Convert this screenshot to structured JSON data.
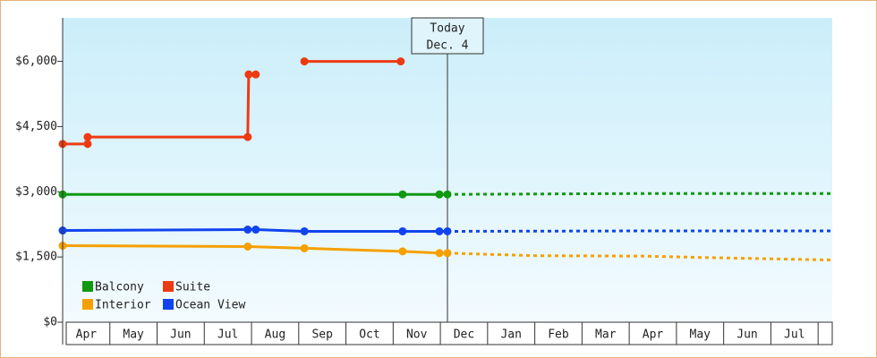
{
  "chart_data": {
    "type": "line",
    "xlim": [
      0,
      16.3
    ],
    "xticks": [
      {
        "value": 0.5,
        "label": "Apr"
      },
      {
        "value": 1.5,
        "label": "May"
      },
      {
        "value": 2.5,
        "label": "Jun"
      },
      {
        "value": 3.5,
        "label": "Jul"
      },
      {
        "value": 4.5,
        "label": "Aug"
      },
      {
        "value": 5.5,
        "label": "Sep"
      },
      {
        "value": 6.5,
        "label": "Oct"
      },
      {
        "value": 7.5,
        "label": "Nov"
      },
      {
        "value": 8.5,
        "label": "Dec"
      },
      {
        "value": 9.5,
        "label": "Jan"
      },
      {
        "value": 10.5,
        "label": "Feb"
      },
      {
        "value": 11.5,
        "label": "Mar"
      },
      {
        "value": 12.5,
        "label": "Apr"
      },
      {
        "value": 13.5,
        "label": "May"
      },
      {
        "value": 14.5,
        "label": "Jun"
      },
      {
        "value": 15.5,
        "label": "Jul"
      }
    ],
    "ylim": [
      0,
      7000
    ],
    "yticks": [
      {
        "value": 0,
        "label": "$0"
      },
      {
        "value": 1500,
        "label": "$1,500"
      },
      {
        "value": 3000,
        "label": "$3,000"
      },
      {
        "value": 4500,
        "label": "$4,500"
      },
      {
        "value": 6000,
        "label": "$6,000"
      }
    ],
    "today": {
      "x": 8.15,
      "title": "Today",
      "date": "Dec. 4"
    },
    "legend": "lower left",
    "series": [
      {
        "name": "Balcony",
        "color": "#119911",
        "x": [
          0,
          7.2,
          7.98,
          8.15
        ],
        "values": [
          2940,
          2940,
          2940,
          2940
        ],
        "forecast": {
          "x": [
            8.15,
            12.3,
            16.3
          ],
          "values": [
            2940,
            2960,
            2960
          ]
        }
      },
      {
        "name": "Suite",
        "color": "#ee3a12",
        "x": [
          0,
          0.53,
          0.53,
          3.92,
          3.94,
          4.09,
          4.6,
          5.12,
          7.16
        ],
        "values": [
          4100,
          4100,
          4260,
          4260,
          5700,
          5700,
          null,
          6000,
          6000
        ]
      },
      {
        "name": "Interior",
        "color": "#f5a000",
        "x": [
          0,
          3.92,
          5.12,
          7.2,
          7.98,
          8.15
        ],
        "values": [
          1760,
          1740,
          1700,
          1630,
          1590,
          1590
        ],
        "forecast": {
          "x": [
            8.15,
            10,
            12.3,
            13.5,
            16.3
          ],
          "values": [
            1590,
            1530,
            1520,
            1490,
            1430
          ]
        }
      },
      {
        "name": "Ocean View",
        "color": "#1144ee",
        "x": [
          0,
          3.92,
          4.09,
          5.12,
          7.2,
          7.98,
          8.15
        ],
        "values": [
          2110,
          2130,
          2130,
          2090,
          2090,
          2090,
          2090
        ],
        "forecast": {
          "x": [
            8.15,
            12.3,
            16.3
          ],
          "values": [
            2090,
            2100,
            2100
          ]
        }
      }
    ]
  }
}
